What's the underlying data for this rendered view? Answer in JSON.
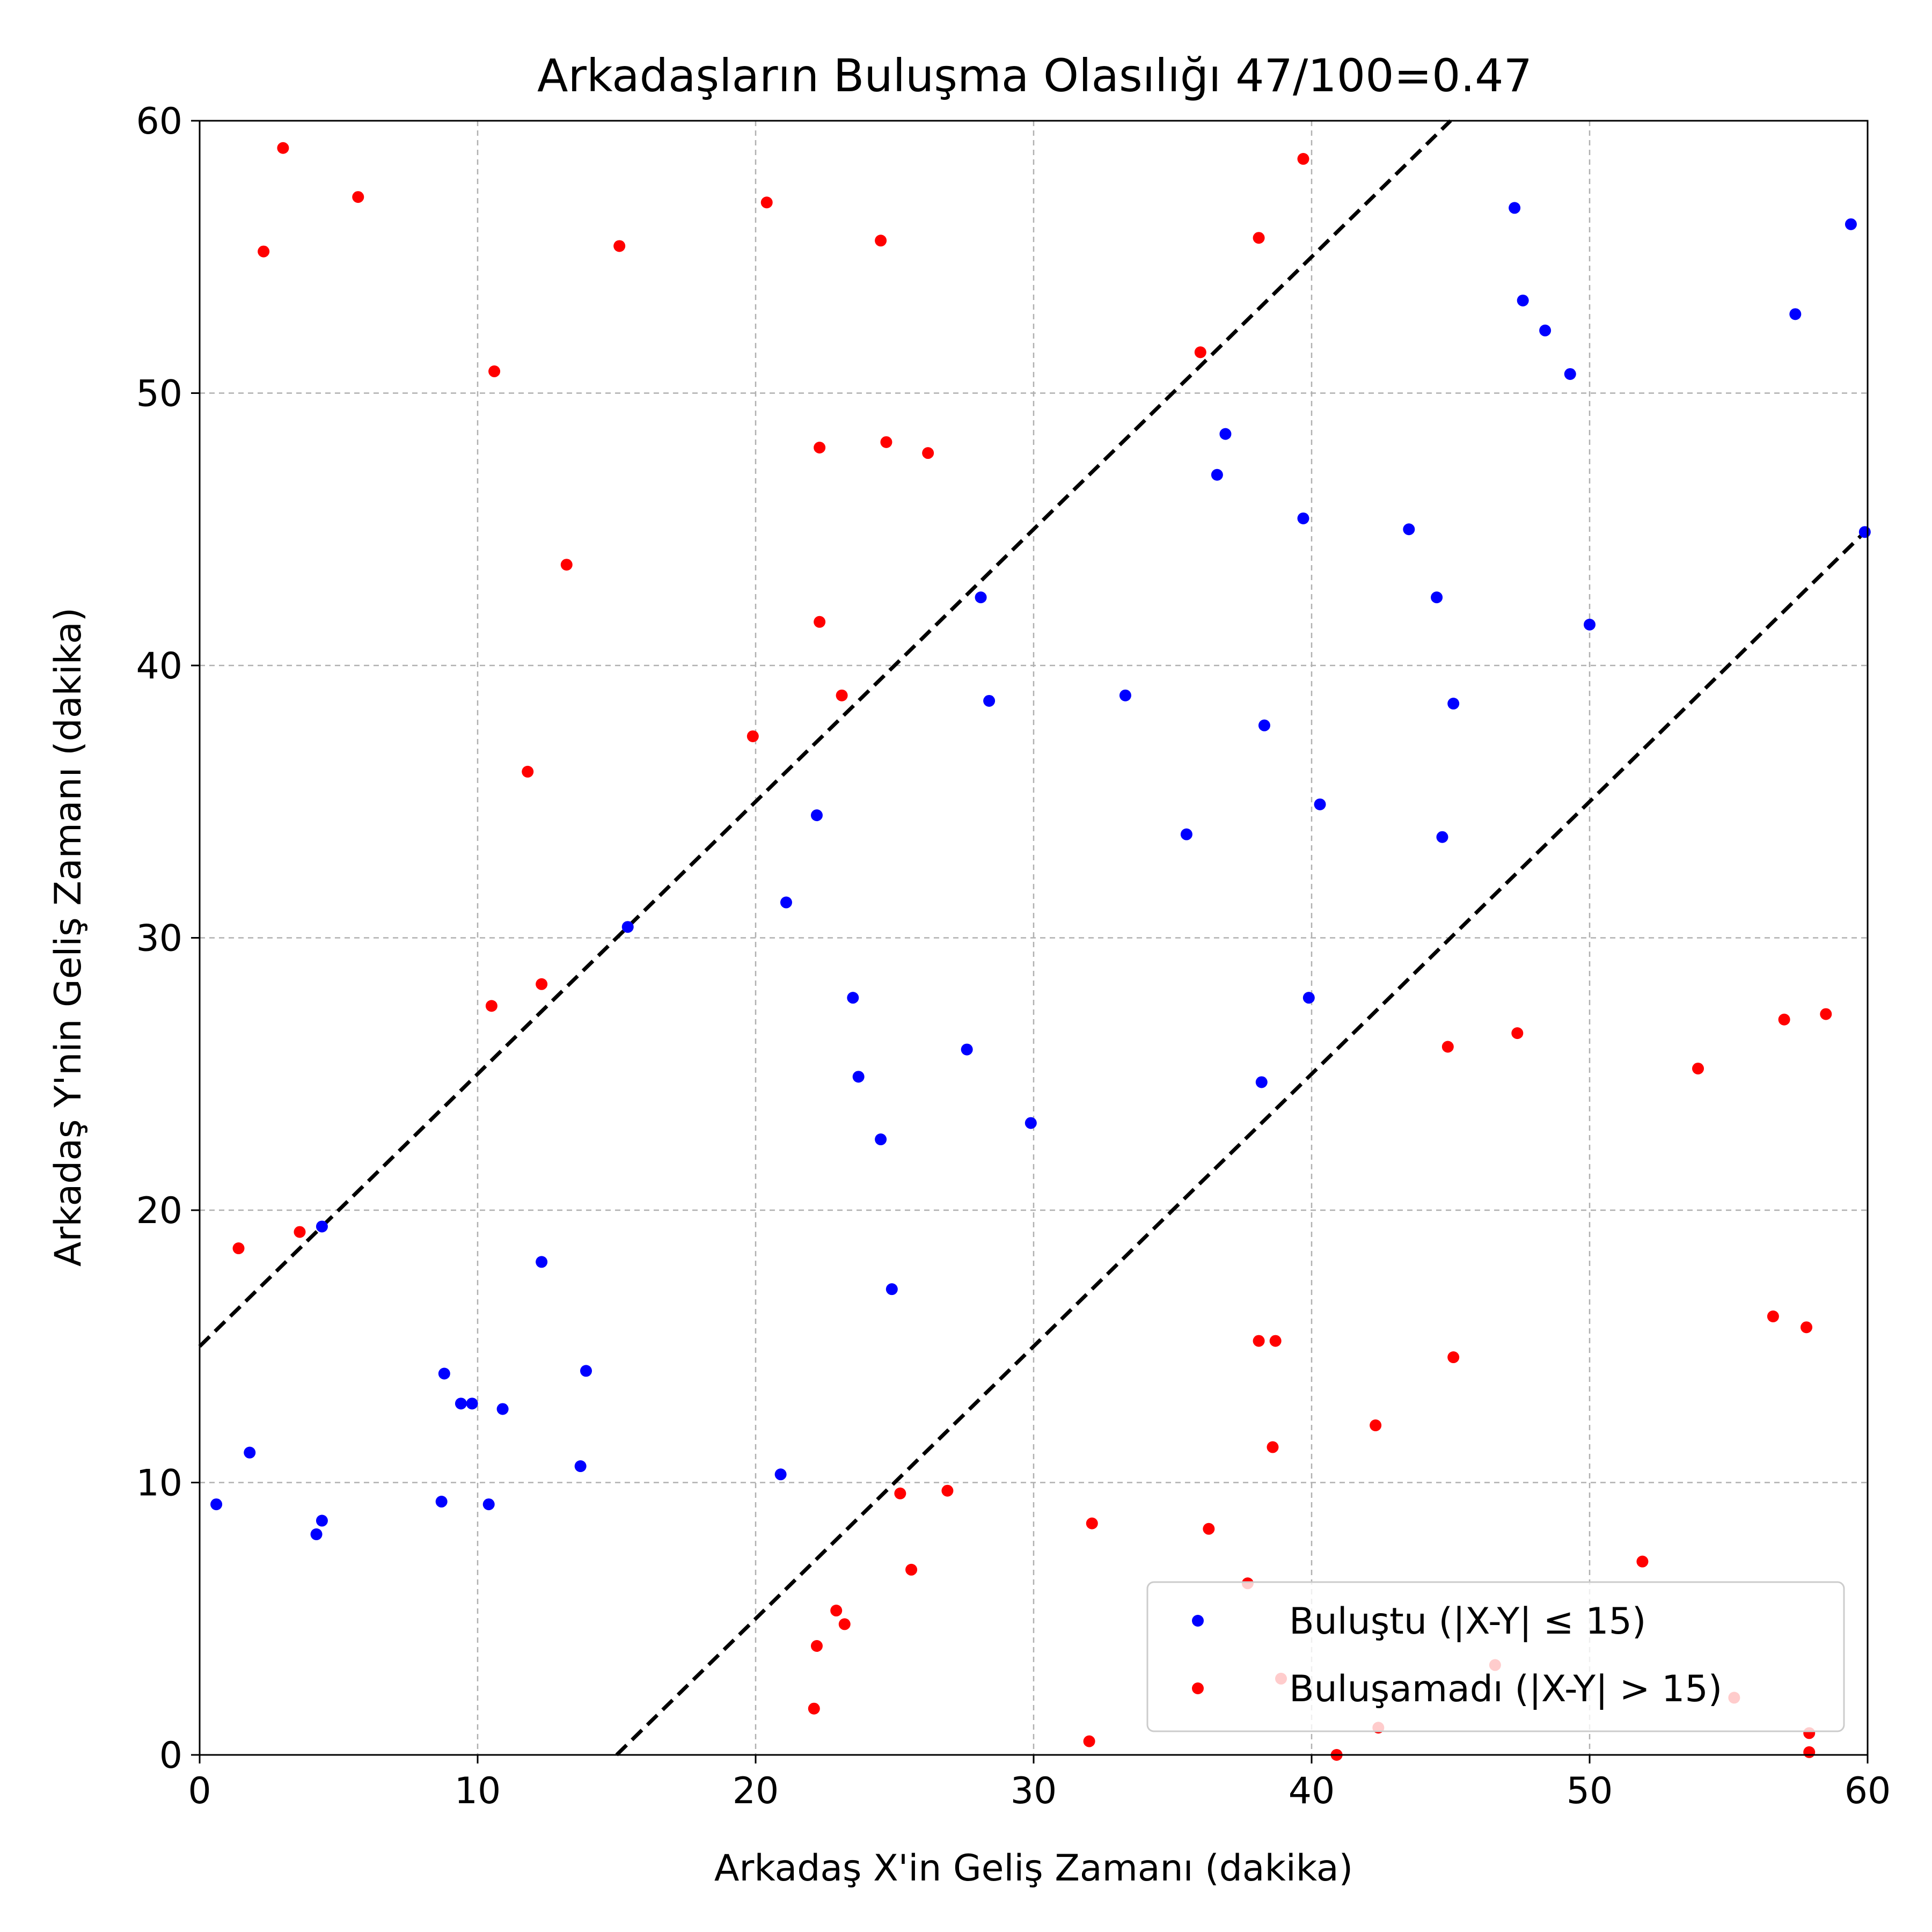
{
  "chart_data": {
    "type": "scatter",
    "title": "Arkadaşların Buluşma Olasılığı 47/100=0.47",
    "xlabel": "Arkadaş X'in Geliş Zamanı (dakika)",
    "ylabel": "Arkadaş Y'nin Geliş Zamanı (dakika)",
    "xlim": [
      0,
      60
    ],
    "ylim": [
      0,
      60
    ],
    "xticks": [
      0,
      10,
      20,
      30,
      40,
      50,
      60
    ],
    "yticks": [
      0,
      10,
      20,
      30,
      40,
      50,
      60
    ],
    "grid": true,
    "threshold": 15,
    "boundary_lines": [
      {
        "name": "Y = X + 15",
        "points": [
          [
            0,
            15
          ],
          [
            45,
            60
          ]
        ],
        "style": "dashed",
        "color": "#000000"
      },
      {
        "name": "Y = X - 15",
        "points": [
          [
            15,
            0
          ],
          [
            60,
            45
          ]
        ],
        "style": "dashed",
        "color": "#000000"
      }
    ],
    "legend_position": "lower-right",
    "series": [
      {
        "name": "Buluştu (|X-Y| ≤ 15)",
        "color": "#0000ff",
        "points": [
          [
            0.6,
            9.2
          ],
          [
            1.8,
            11.1
          ],
          [
            4.2,
            8.1
          ],
          [
            4.4,
            8.6
          ],
          [
            4.4,
            19.4
          ],
          [
            8.7,
            9.3
          ],
          [
            8.8,
            14.0
          ],
          [
            9.4,
            12.9
          ],
          [
            9.8,
            12.9
          ],
          [
            10.4,
            9.2
          ],
          [
            10.9,
            12.7
          ],
          [
            12.3,
            18.1
          ],
          [
            13.7,
            10.6
          ],
          [
            13.9,
            14.1
          ],
          [
            15.4,
            30.4
          ],
          [
            20.9,
            10.3
          ],
          [
            21.1,
            31.3
          ],
          [
            22.2,
            34.5
          ],
          [
            23.5,
            27.8
          ],
          [
            23.7,
            24.9
          ],
          [
            24.5,
            22.6
          ],
          [
            24.9,
            17.1
          ],
          [
            27.6,
            25.9
          ],
          [
            28.1,
            42.5
          ],
          [
            28.4,
            38.7
          ],
          [
            29.9,
            23.2
          ],
          [
            33.3,
            38.9
          ],
          [
            35.5,
            33.8
          ],
          [
            36.6,
            47.0
          ],
          [
            36.9,
            48.5
          ],
          [
            38.2,
            24.7
          ],
          [
            38.3,
            37.8
          ],
          [
            39.7,
            45.4
          ],
          [
            39.9,
            27.8
          ],
          [
            40.3,
            34.9
          ],
          [
            43.5,
            45.0
          ],
          [
            44.5,
            42.5
          ],
          [
            44.7,
            33.7
          ],
          [
            45.1,
            38.6
          ],
          [
            47.3,
            56.8
          ],
          [
            47.6,
            53.4
          ],
          [
            48.4,
            52.3
          ],
          [
            49.3,
            50.7
          ],
          [
            50.0,
            41.5
          ],
          [
            57.4,
            52.9
          ],
          [
            59.4,
            56.2
          ],
          [
            59.9,
            44.9
          ]
        ]
      },
      {
        "name": "Buluşamadı (|X-Y| > 15)",
        "color": "#ff0000",
        "points": [
          [
            1.4,
            18.6
          ],
          [
            2.3,
            55.2
          ],
          [
            3.0,
            59.0
          ],
          [
            3.6,
            19.2
          ],
          [
            5.7,
            57.2
          ],
          [
            10.5,
            27.5
          ],
          [
            10.6,
            50.8
          ],
          [
            11.8,
            36.1
          ],
          [
            12.3,
            28.3
          ],
          [
            13.2,
            43.7
          ],
          [
            15.1,
            55.4
          ],
          [
            19.9,
            37.4
          ],
          [
            20.4,
            57.0
          ],
          [
            22.1,
            1.7
          ],
          [
            22.2,
            4.0
          ],
          [
            22.3,
            41.6
          ],
          [
            22.3,
            48.0
          ],
          [
            22.9,
            5.3
          ],
          [
            23.1,
            38.9
          ],
          [
            23.2,
            4.8
          ],
          [
            24.5,
            55.6
          ],
          [
            24.7,
            48.2
          ],
          [
            25.2,
            9.6
          ],
          [
            25.6,
            6.8
          ],
          [
            26.2,
            47.8
          ],
          [
            26.9,
            9.7
          ],
          [
            32.0,
            0.5
          ],
          [
            32.1,
            8.5
          ],
          [
            36.0,
            51.5
          ],
          [
            36.3,
            8.3
          ],
          [
            37.7,
            6.3
          ],
          [
            38.1,
            15.2
          ],
          [
            38.1,
            55.7
          ],
          [
            38.6,
            11.3
          ],
          [
            38.7,
            15.2
          ],
          [
            38.9,
            2.8
          ],
          [
            39.7,
            58.6
          ],
          [
            40.9,
            0.0
          ],
          [
            42.3,
            12.1
          ],
          [
            42.4,
            1.0
          ],
          [
            44.9,
            26.0
          ],
          [
            45.1,
            14.6
          ],
          [
            46.6,
            3.3
          ],
          [
            47.4,
            26.5
          ],
          [
            51.9,
            7.1
          ],
          [
            53.9,
            25.2
          ],
          [
            55.2,
            2.1
          ],
          [
            56.6,
            16.1
          ],
          [
            57.0,
            27.0
          ],
          [
            57.8,
            15.7
          ],
          [
            57.9,
            0.8
          ],
          [
            57.9,
            0.1
          ],
          [
            58.5,
            27.2
          ]
        ]
      }
    ]
  }
}
